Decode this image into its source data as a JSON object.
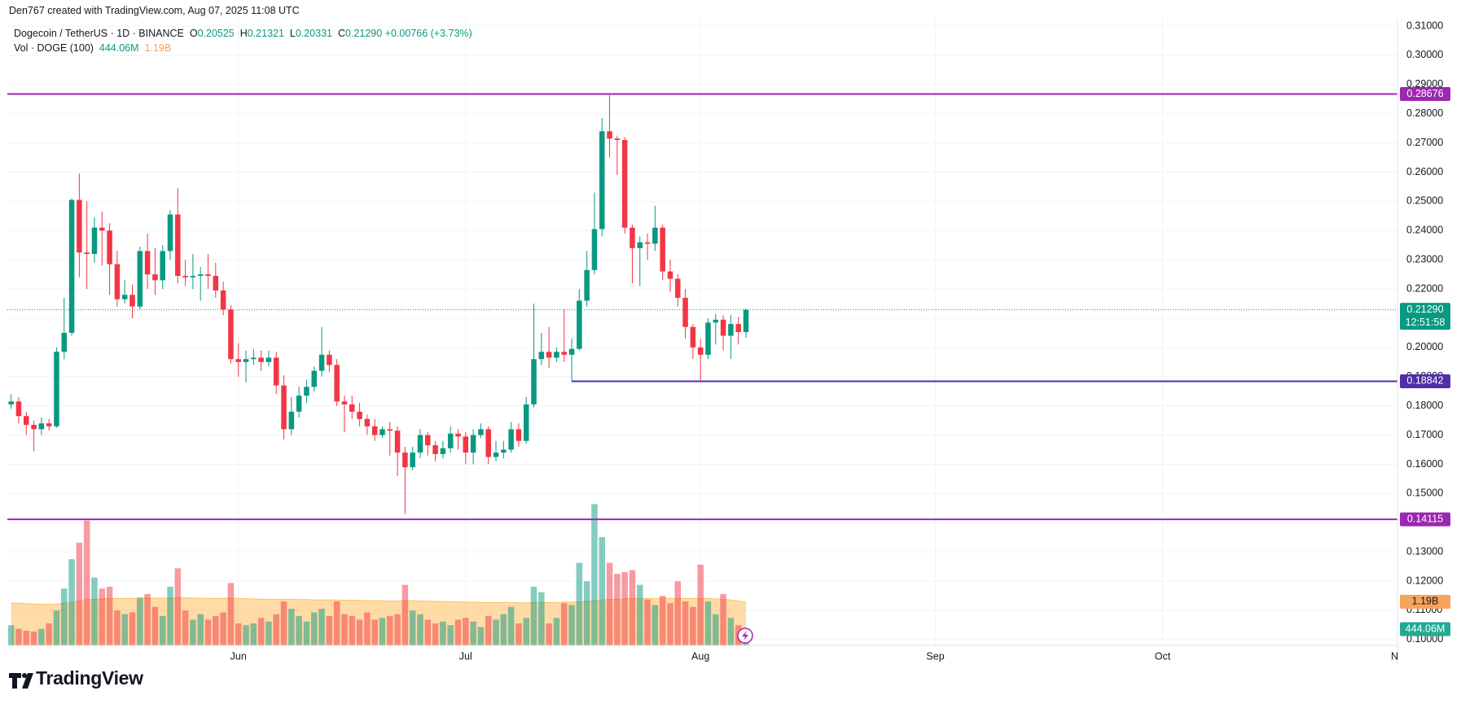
{
  "header": {
    "credit": "Den767 created with TradingView.com, Aug 07, 2025 11:08 UTC"
  },
  "chart_data": {
    "type": "candlestick",
    "legend": {
      "title": "Dogecoin / TetherUS · 1D · BINANCE",
      "o_label": "O",
      "open": "0.20525",
      "h_label": "H",
      "high": "0.21321",
      "l_label": "L",
      "low": "0.20331",
      "c_label": "C",
      "change": "+0.00766 (+3.73%)"
    },
    "volume_legend": {
      "title": "Vol · DOGE (100)",
      "volume": "444.06M",
      "ma": "1.19B"
    },
    "open": [
      0.1805,
      0.1815,
      0.1765,
      0.1735,
      0.172,
      0.174,
      0.173,
      0.1985,
      0.205,
      0.2505,
      0.2325,
      0.232,
      0.241,
      0.24,
      0.2285,
      0.2165,
      0.218,
      0.214,
      0.233,
      0.225,
      0.223,
      0.233,
      0.2455,
      0.2245,
      0.224,
      0.2245,
      0.225,
      0.2245,
      0.2195,
      0.213,
      0.196,
      0.195,
      0.196,
      0.1965,
      0.195,
      0.1965,
      0.187,
      0.172,
      0.178,
      0.1835,
      0.1865,
      0.192,
      0.1975,
      0.194,
      0.1815,
      0.1805,
      0.178,
      0.1755,
      0.173,
      0.17,
      0.172,
      0.1715,
      0.164,
      0.159,
      0.164,
      0.17,
      0.1665,
      0.1635,
      0.1655,
      0.1705,
      0.1695,
      0.164,
      0.17,
      0.172,
      0.1625,
      0.164,
      0.165,
      0.172,
      0.168,
      0.1805,
      0.196,
      0.1985,
      0.1965,
      0.1985,
      0.1975,
      0.1995,
      0.216,
      0.2265,
      0.2405,
      0.274,
      0.2715,
      0.271,
      0.241,
      0.234,
      0.236,
      0.2355,
      0.241,
      0.226,
      0.2235,
      0.217,
      0.207,
      0.2,
      0.1975,
      0.2085,
      0.2095,
      0.204,
      0.208,
      0.20525
    ],
    "high": [
      0.184,
      0.183,
      0.178,
      0.175,
      0.176,
      0.1755,
      0.2,
      0.217,
      0.251,
      0.2595,
      0.25,
      0.2445,
      0.2465,
      0.2425,
      0.233,
      0.223,
      0.2215,
      0.2345,
      0.239,
      0.234,
      0.235,
      0.247,
      0.2545,
      0.23,
      0.232,
      0.2275,
      0.232,
      0.229,
      0.2225,
      0.2145,
      0.2015,
      0.199,
      0.1995,
      0.199,
      0.199,
      0.1985,
      0.1905,
      0.183,
      0.1865,
      0.189,
      0.1935,
      0.207,
      0.199,
      0.196,
      0.1835,
      0.1835,
      0.181,
      0.177,
      0.1755,
      0.173,
      0.1745,
      0.173,
      0.166,
      0.166,
      0.172,
      0.171,
      0.168,
      0.168,
      0.173,
      0.172,
      0.171,
      0.172,
      0.174,
      0.173,
      0.168,
      0.168,
      0.1745,
      0.174,
      0.183,
      0.215,
      0.205,
      0.207,
      0.2,
      0.213,
      0.203,
      0.22,
      0.233,
      0.253,
      0.2785,
      0.2868,
      0.2725,
      0.272,
      0.242,
      0.238,
      0.239,
      0.2485,
      0.242,
      0.23,
      0.225,
      0.22,
      0.208,
      0.203,
      0.21,
      0.2115,
      0.211,
      0.211,
      0.2105,
      0.21321
    ],
    "low": [
      0.179,
      0.174,
      0.17,
      0.1645,
      0.17,
      0.1715,
      0.1725,
      0.196,
      0.204,
      0.224,
      0.22,
      0.229,
      0.228,
      0.218,
      0.214,
      0.215,
      0.21,
      0.213,
      0.22,
      0.218,
      0.22,
      0.23,
      0.222,
      0.221,
      0.22,
      0.216,
      0.22,
      0.217,
      0.211,
      0.1945,
      0.19,
      0.188,
      0.194,
      0.192,
      0.1935,
      0.184,
      0.1685,
      0.17,
      0.176,
      0.181,
      0.185,
      0.19,
      0.1915,
      0.18,
      0.171,
      0.1755,
      0.173,
      0.17,
      0.168,
      0.169,
      0.163,
      0.156,
      0.143,
      0.158,
      0.162,
      0.163,
      0.161,
      0.162,
      0.164,
      0.165,
      0.16,
      0.16,
      0.169,
      0.16,
      0.161,
      0.162,
      0.164,
      0.166,
      0.167,
      0.1795,
      0.194,
      0.193,
      0.195,
      0.195,
      0.1884,
      0.199,
      0.214,
      0.225,
      0.238,
      0.265,
      0.259,
      0.239,
      0.222,
      0.221,
      0.23,
      0.233,
      0.223,
      0.219,
      0.214,
      0.203,
      0.196,
      0.1885,
      0.196,
      0.201,
      0.199,
      0.196,
      0.201,
      0.20331
    ],
    "close": [
      0.1815,
      0.1765,
      0.1735,
      0.172,
      0.174,
      0.173,
      0.1985,
      0.205,
      0.2505,
      0.2325,
      0.232,
      0.241,
      0.24,
      0.2285,
      0.2165,
      0.218,
      0.214,
      0.233,
      0.225,
      0.223,
      0.233,
      0.2455,
      0.2245,
      0.224,
      0.2245,
      0.225,
      0.2245,
      0.2195,
      0.213,
      0.196,
      0.195,
      0.196,
      0.1965,
      0.195,
      0.1965,
      0.187,
      0.172,
      0.178,
      0.1835,
      0.1865,
      0.192,
      0.1975,
      0.194,
      0.1815,
      0.1805,
      0.178,
      0.1755,
      0.173,
      0.17,
      0.172,
      0.1715,
      0.164,
      0.159,
      0.164,
      0.17,
      0.1665,
      0.1635,
      0.1655,
      0.1705,
      0.1695,
      0.164,
      0.17,
      0.172,
      0.1625,
      0.164,
      0.165,
      0.172,
      0.168,
      0.1805,
      0.196,
      0.1985,
      0.1965,
      0.1985,
      0.1975,
      0.1995,
      0.216,
      0.2265,
      0.2405,
      0.274,
      0.2715,
      0.271,
      0.241,
      0.234,
      0.236,
      0.2355,
      0.241,
      0.226,
      0.2235,
      0.217,
      0.207,
      0.2,
      0.1975,
      0.2085,
      0.2095,
      0.204,
      0.208,
      0.20525,
      0.2129
    ],
    "volume": [
      550000000.0,
      450000000.0,
      400000000.0,
      380000000.0,
      450000000.0,
      600000000.0,
      950000000.0,
      1550000000.0,
      2350000000.0,
      2800000000.0,
      3400000000.0,
      1850000000.0,
      1550000000.0,
      1600000000.0,
      950000000.0,
      850000000.0,
      900000000.0,
      1300000000.0,
      1400000000.0,
      1050000000.0,
      800000000.0,
      1600000000.0,
      2100000000.0,
      950000000.0,
      700000000.0,
      850000000.0,
      700000000.0,
      800000000.0,
      900000000.0,
      1700000000.0,
      600000000.0,
      550000000.0,
      600000000.0,
      750000000.0,
      650000000.0,
      850000000.0,
      1200000000.0,
      1000000000.0,
      800000000.0,
      650000000.0,
      900000000.0,
      1000000000.0,
      800000000.0,
      1200000000.0,
      850000000.0,
      800000000.0,
      700000000.0,
      900000000.0,
      700000000.0,
      750000000.0,
      800000000.0,
      850000000.0,
      1650000000.0,
      950000000.0,
      850000000.0,
      700000000.0,
      600000000.0,
      650000000.0,
      550000000.0,
      700000000.0,
      750000000.0,
      650000000.0,
      500000000.0,
      800000000.0,
      700000000.0,
      850000000.0,
      1050000000.0,
      600000000.0,
      750000000.0,
      1600000000.0,
      1450000000.0,
      600000000.0,
      750000000.0,
      1150000000.0,
      1100000000.0,
      2250000000.0,
      1750000000.0,
      3850000000.0,
      2950000000.0,
      2250000000.0,
      1950000000.0,
      2000000000.0,
      2050000000.0,
      1650000000.0,
      1250000000.0,
      1100000000.0,
      1350000000.0,
      1150000000.0,
      1750000000.0,
      1200000000.0,
      1050000000.0,
      2200000000.0,
      1200000000.0,
      850000000.0,
      1400000000.0,
      750000000.0,
      550000000.0,
      444060000.0
    ],
    "volume_ma": [
      1160000000.0,
      1150000000.0,
      1140000000.0,
      1130000000.0,
      1120000000.0,
      1120000000.0,
      1130000000.0,
      1150000000.0,
      1180000000.0,
      1210000000.0,
      1250000000.0,
      1260000000.0,
      1270000000.0,
      1280000000.0,
      1280000000.0,
      1280000000.0,
      1280000000.0,
      1290000000.0,
      1290000000.0,
      1290000000.0,
      1290000000.0,
      1290000000.0,
      1300000000.0,
      1300000000.0,
      1290000000.0,
      1290000000.0,
      1280000000.0,
      1280000000.0,
      1280000000.0,
      1290000000.0,
      1280000000.0,
      1270000000.0,
      1270000000.0,
      1260000000.0,
      1260000000.0,
      1260000000.0,
      1260000000.0,
      1260000000.0,
      1250000000.0,
      1250000000.0,
      1240000000.0,
      1240000000.0,
      1240000000.0,
      1240000000.0,
      1230000000.0,
      1230000000.0,
      1230000000.0,
      1220000000.0,
      1220000000.0,
      1220000000.0,
      1210000000.0,
      1210000000.0,
      1220000000.0,
      1220000000.0,
      1210000000.0,
      1210000000.0,
      1200000000.0,
      1200000000.0,
      1190000000.0,
      1190000000.0,
      1180000000.0,
      1180000000.0,
      1170000000.0,
      1170000000.0,
      1170000000.0,
      1170000000.0,
      1170000000.0,
      1160000000.0,
      1160000000.0,
      1170000000.0,
      1170000000.0,
      1170000000.0,
      1170000000.0,
      1180000000.0,
      1180000000.0,
      1190000000.0,
      1200000000.0,
      1220000000.0,
      1240000000.0,
      1250000000.0,
      1260000000.0,
      1270000000.0,
      1280000000.0,
      1280000000.0,
      1280000000.0,
      1280000000.0,
      1280000000.0,
      1280000000.0,
      1280000000.0,
      1280000000.0,
      1280000000.0,
      1280000000.0,
      1280000000.0,
      1270000000.0,
      1260000000.0,
      1240000000.0,
      1210000000.0,
      1190000000.0
    ],
    "up_color": "#089981",
    "down_color": "#f23645",
    "ma_color": "#ff9800",
    "xlim": [
      -0.5,
      183
    ],
    "xticks": [
      {
        "value": 30,
        "label": "Jun"
      },
      {
        "value": 60,
        "label": "Jul"
      },
      {
        "value": 91,
        "label": "Aug"
      },
      {
        "value": 122,
        "label": "Sep"
      },
      {
        "value": 152,
        "label": "Oct"
      },
      {
        "value": 183,
        "label": "No"
      }
    ],
    "ylim": [
      0.098,
      0.3128
    ],
    "yticks": [
      {
        "value": 0.31,
        "label": "0.31000"
      },
      {
        "value": 0.3,
        "label": "0.30000"
      },
      {
        "value": 0.29,
        "label": "0.29000"
      },
      {
        "value": 0.28,
        "label": "0.28000"
      },
      {
        "value": 0.27,
        "label": "0.27000"
      },
      {
        "value": 0.26,
        "label": "0.26000"
      },
      {
        "value": 0.25,
        "label": "0.25000"
      },
      {
        "value": 0.24,
        "label": "0.24000"
      },
      {
        "value": 0.23,
        "label": "0.23000"
      },
      {
        "value": 0.22,
        "label": "0.22000"
      },
      {
        "value": 0.21,
        "label": "0.21000"
      },
      {
        "value": 0.2,
        "label": "0.20000"
      },
      {
        "value": 0.19,
        "label": "0.19000"
      },
      {
        "value": 0.18,
        "label": "0.18000"
      },
      {
        "value": 0.17,
        "label": "0.17000"
      },
      {
        "value": 0.16,
        "label": "0.16000"
      },
      {
        "value": 0.15,
        "label": "0.15000"
      },
      {
        "value": 0.14,
        "label": "0.14000"
      },
      {
        "value": 0.13,
        "label": "0.13000"
      },
      {
        "value": 0.12,
        "label": "0.12000"
      },
      {
        "value": 0.11,
        "label": "0.11000"
      },
      {
        "value": 0.1,
        "label": "0.10000"
      }
    ],
    "y2lim": [
      0,
      17100000000.0
    ],
    "grid": true,
    "levels": [
      {
        "value": 0.28676,
        "color": "#9c27b0"
      },
      {
        "value": 0.18842,
        "from": 74,
        "color": "#512da8"
      },
      {
        "value": 0.14115,
        "color": "#9c27b0"
      }
    ],
    "last_price": {
      "value": 0.2129,
      "label": "0.21290",
      "countdown": "12:51:58"
    }
  },
  "footer": {
    "logo": "TradingView"
  }
}
